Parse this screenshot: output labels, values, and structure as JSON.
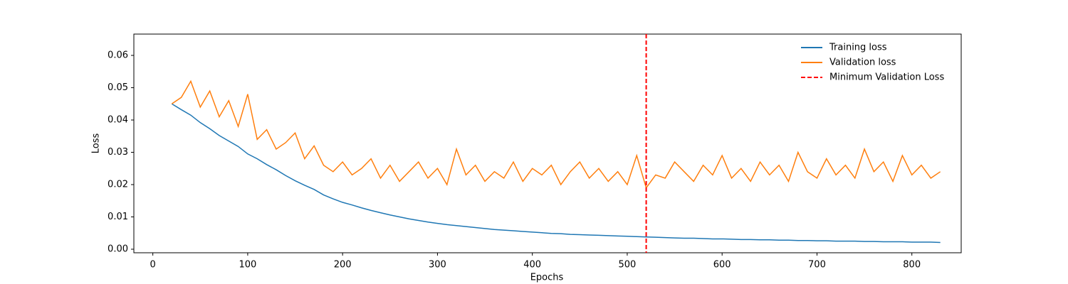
{
  "chart_data": {
    "type": "line",
    "x_label": "Epochs",
    "y_label": "Loss",
    "x": [
      20,
      30,
      40,
      50,
      60,
      70,
      80,
      90,
      100,
      110,
      120,
      130,
      140,
      150,
      160,
      170,
      180,
      190,
      200,
      210,
      220,
      230,
      240,
      250,
      260,
      270,
      280,
      290,
      300,
      310,
      320,
      330,
      340,
      350,
      360,
      370,
      380,
      390,
      400,
      410,
      420,
      430,
      440,
      450,
      460,
      470,
      480,
      490,
      500,
      510,
      520,
      530,
      540,
      550,
      560,
      570,
      580,
      590,
      600,
      610,
      620,
      630,
      640,
      650,
      660,
      670,
      680,
      690,
      700,
      710,
      720,
      730,
      740,
      750,
      760,
      770,
      780,
      790,
      800,
      810,
      820,
      830
    ],
    "series": [
      {
        "name": "Training loss",
        "color": "#1f77b4",
        "values": [
          0.045,
          0.0432,
          0.0415,
          0.0392,
          0.0373,
          0.0352,
          0.0335,
          0.0318,
          0.0295,
          0.028,
          0.0262,
          0.0246,
          0.0228,
          0.0212,
          0.0198,
          0.0185,
          0.0168,
          0.0156,
          0.0145,
          0.0137,
          0.0128,
          0.012,
          0.0113,
          0.0106,
          0.01,
          0.0094,
          0.0089,
          0.0084,
          0.008,
          0.0076,
          0.0073,
          0.007,
          0.0067,
          0.0064,
          0.0061,
          0.0059,
          0.0057,
          0.0055,
          0.0053,
          0.0051,
          0.0049,
          0.0048,
          0.0046,
          0.0045,
          0.0044,
          0.0043,
          0.0042,
          0.0041,
          0.004,
          0.0039,
          0.0038,
          0.0037,
          0.0036,
          0.0035,
          0.0034,
          0.0034,
          0.0033,
          0.0032,
          0.0032,
          0.0031,
          0.003,
          0.003,
          0.0029,
          0.0029,
          0.0028,
          0.0028,
          0.0027,
          0.0027,
          0.0026,
          0.0026,
          0.0025,
          0.0025,
          0.0025,
          0.0024,
          0.0024,
          0.0023,
          0.0023,
          0.0023,
          0.0022,
          0.0022,
          0.0022,
          0.0021
        ]
      },
      {
        "name": "Validation loss",
        "color": "#ff7f0e",
        "values": [
          0.045,
          0.047,
          0.052,
          0.044,
          0.049,
          0.041,
          0.046,
          0.038,
          0.048,
          0.034,
          0.037,
          0.031,
          0.033,
          0.036,
          0.028,
          0.032,
          0.026,
          0.024,
          0.027,
          0.023,
          0.025,
          0.028,
          0.022,
          0.026,
          0.021,
          0.024,
          0.027,
          0.022,
          0.025,
          0.02,
          0.031,
          0.023,
          0.026,
          0.021,
          0.024,
          0.022,
          0.027,
          0.021,
          0.025,
          0.023,
          0.026,
          0.02,
          0.024,
          0.027,
          0.022,
          0.025,
          0.021,
          0.024,
          0.02,
          0.029,
          0.019,
          0.023,
          0.022,
          0.027,
          0.024,
          0.021,
          0.026,
          0.023,
          0.029,
          0.022,
          0.025,
          0.021,
          0.027,
          0.023,
          0.026,
          0.021,
          0.03,
          0.024,
          0.022,
          0.028,
          0.023,
          0.026,
          0.022,
          0.031,
          0.024,
          0.027,
          0.021,
          0.029,
          0.023,
          0.026,
          0.022,
          0.024
        ]
      }
    ],
    "vline": {
      "x": 520,
      "label": "Minimum Validation Loss",
      "color": "#ff0000",
      "style": "dashed"
    },
    "xlim": [
      -20,
      852
    ],
    "ylim": [
      -0.0011,
      0.0666
    ],
    "xticks": [
      0,
      100,
      200,
      300,
      400,
      500,
      600,
      700,
      800
    ],
    "yticks": [
      {
        "value": 0,
        "label": "0.00"
      },
      {
        "value": 0.01,
        "label": "0.01"
      },
      {
        "value": 0.02,
        "label": "0.02"
      },
      {
        "value": 0.03,
        "label": "0.03"
      },
      {
        "value": 0.04,
        "label": "0.04"
      },
      {
        "value": 0.05,
        "label": "0.05"
      },
      {
        "value": 0.06,
        "label": "0.06"
      }
    ],
    "legend": "upper right",
    "grid": false
  }
}
